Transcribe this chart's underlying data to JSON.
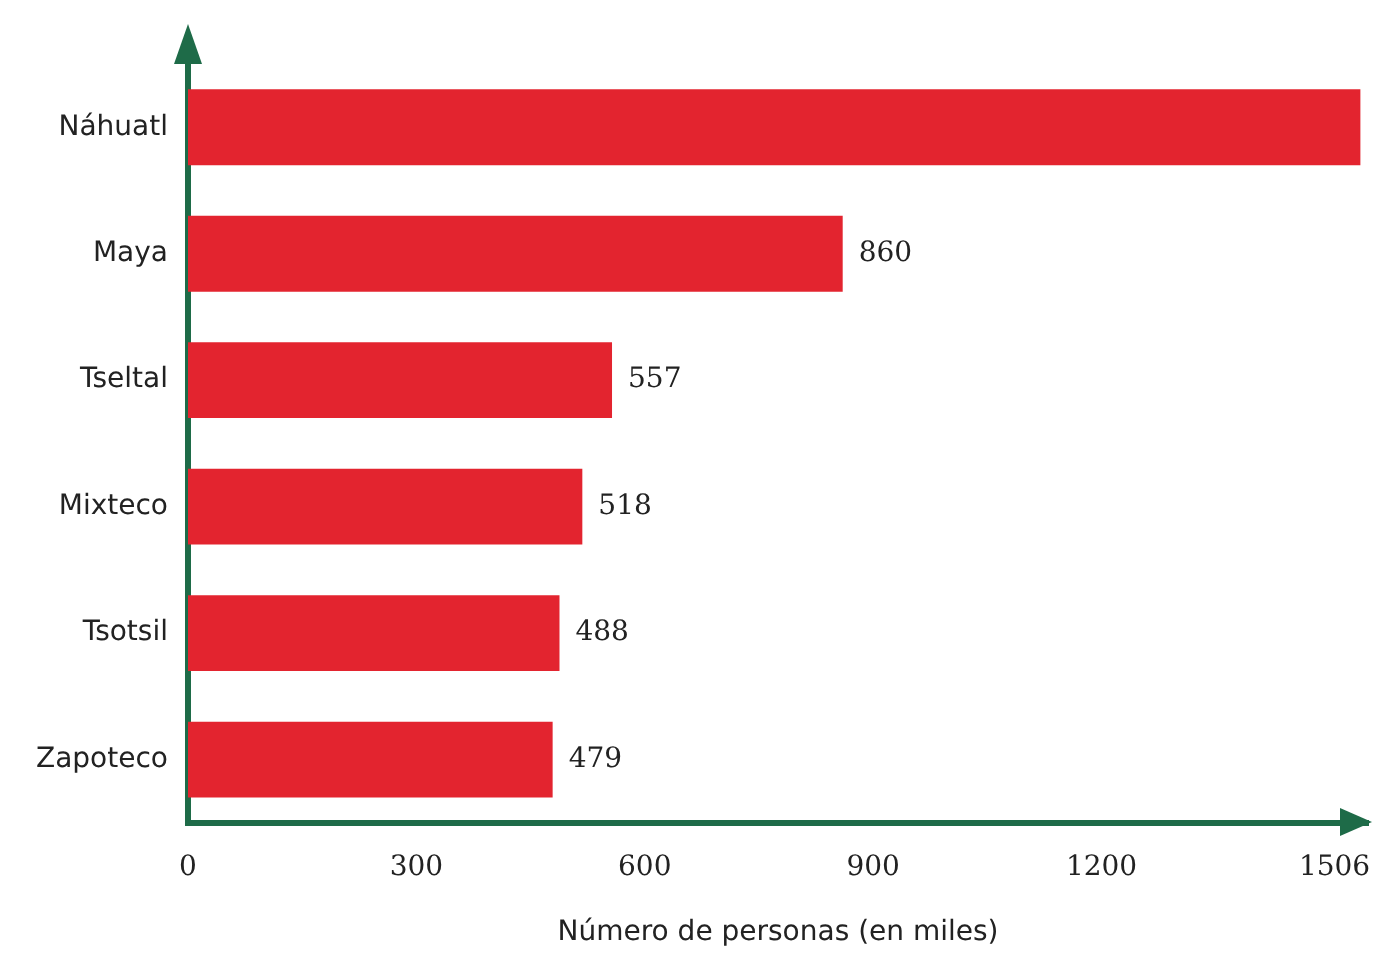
{
  "chart_data": {
    "type": "bar",
    "orientation": "horizontal",
    "xlabel": "Número de personas (en miles)",
    "categories": [
      "Náhuatl",
      "Maya",
      "Tseltal",
      "Mixteco",
      "Tsotsil",
      "Zapoteco"
    ],
    "values": [
      1540,
      860,
      557,
      518,
      488,
      479
    ],
    "value_labels": [
      null,
      "860",
      "557",
      "518",
      "488",
      "479"
    ],
    "color": "#e3242f",
    "xlim": [
      0,
      1550
    ],
    "xticks": [
      0,
      300,
      600,
      900,
      1200,
      1506
    ],
    "grid": false,
    "legend": false
  }
}
